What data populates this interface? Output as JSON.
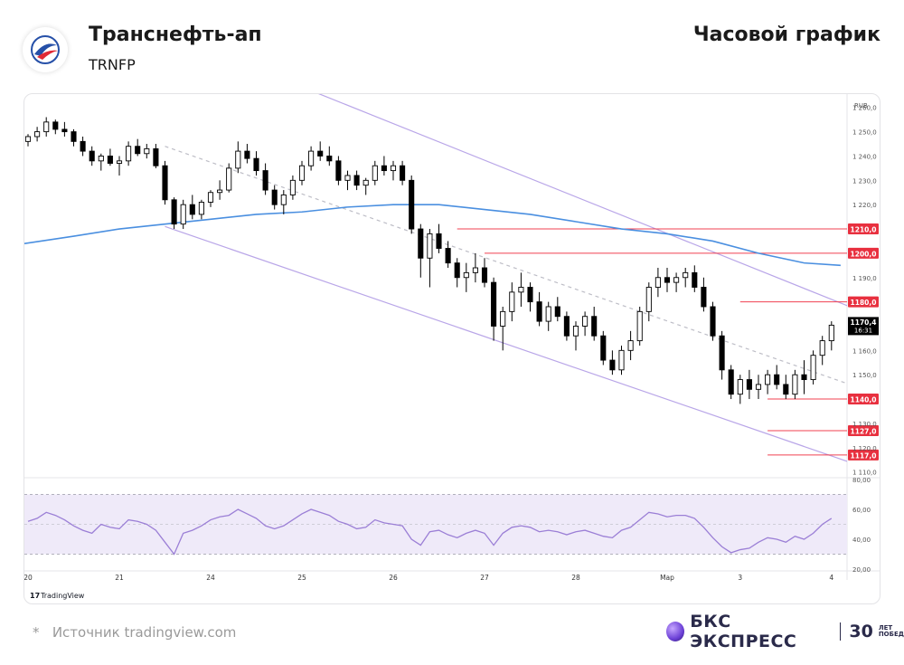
{
  "header": {
    "title": "Транснефть-ап",
    "ticker": "TRNFP",
    "chart_type_label": "Часовой график"
  },
  "footer": {
    "source": "Источник tradingview.com",
    "source_marker": "*",
    "brand_name": "БКС ЭКСПРЕСС",
    "brand_years": "30",
    "brand_years_caption_1": "ЛЕТ",
    "brand_years_caption_2": "ПОБЕД",
    "tradingview_label": "TradingView"
  },
  "colors": {
    "up_candle": "#ffffff",
    "down_candle": "#000000",
    "ma_line": "#4a8fe0",
    "channel": "#b9a6e8",
    "level_line": "#f04050",
    "level_badge": "#e8303f",
    "rsi_line": "#9b7fd6",
    "rsi_band": "#efeaf9"
  },
  "chart_data": {
    "type": "candlestick",
    "currency": "RUB",
    "y_axis_ticks": [
      "1 260,0",
      "1 250,0",
      "1 240,0",
      "1 230,0",
      "1 220,0",
      "1 190,0",
      "1 160,0",
      "1 150,0",
      "1 130,0",
      "1 120,0",
      "1 110,0"
    ],
    "ylim": [
      1108,
      1264
    ],
    "x_tick_labels": [
      "20",
      "21",
      "24",
      "25",
      "26",
      "27",
      "28",
      "Мар",
      "3",
      "4"
    ],
    "x_tick_index": [
      0,
      10,
      20,
      30,
      40,
      50,
      60,
      70,
      78,
      88
    ],
    "last_price_label": "1170,4",
    "last_time_label": "16:31",
    "last_price": 1170.4,
    "levels": [
      {
        "label": "1210,0",
        "value": 1210.0,
        "from_index": 47
      },
      {
        "label": "1200,0",
        "value": 1200.0,
        "from_index": 50
      },
      {
        "label": "1180,0",
        "value": 1180.0,
        "from_index": 78
      },
      {
        "label": "1140,0",
        "value": 1140.0,
        "from_index": 81
      },
      {
        "label": "1127,0",
        "value": 1127.0,
        "from_index": 81
      },
      {
        "label": "1117,0",
        "value": 1117.0,
        "from_index": 81
      }
    ],
    "channel": {
      "upper": [
        [
          19,
          1285
        ],
        [
          90,
          1178
        ]
      ],
      "lower": [
        [
          15,
          1211
        ],
        [
          90,
          1114
        ]
      ],
      "middle": [
        [
          15,
          1244
        ],
        [
          90,
          1146
        ]
      ]
    },
    "moving_average": [
      [
        0,
        1204
      ],
      [
        5,
        1207
      ],
      [
        10,
        1210
      ],
      [
        15,
        1212
      ],
      [
        20,
        1214
      ],
      [
        25,
        1216
      ],
      [
        30,
        1217
      ],
      [
        35,
        1219
      ],
      [
        40,
        1220
      ],
      [
        45,
        1220
      ],
      [
        50,
        1218
      ],
      [
        55,
        1216
      ],
      [
        60,
        1213
      ],
      [
        65,
        1210
      ],
      [
        70,
        1208
      ],
      [
        75,
        1205
      ],
      [
        80,
        1200
      ],
      [
        85,
        1196
      ],
      [
        89,
        1195
      ]
    ],
    "candles": [
      [
        1246,
        1249,
        1244,
        1248
      ],
      [
        1248,
        1252,
        1246,
        1250
      ],
      [
        1250,
        1256,
        1248,
        1254
      ],
      [
        1254,
        1255,
        1249,
        1251
      ],
      [
        1251,
        1254,
        1248,
        1250
      ],
      [
        1250,
        1251,
        1244,
        1246
      ],
      [
        1246,
        1248,
        1240,
        1242
      ],
      [
        1242,
        1244,
        1236,
        1238
      ],
      [
        1238,
        1241,
        1234,
        1240
      ],
      [
        1240,
        1243,
        1236,
        1237
      ],
      [
        1237,
        1240,
        1232,
        1238
      ],
      [
        1238,
        1246,
        1236,
        1244
      ],
      [
        1244,
        1247,
        1240,
        1241
      ],
      [
        1241,
        1245,
        1239,
        1243
      ],
      [
        1243,
        1245,
        1235,
        1236
      ],
      [
        1236,
        1238,
        1220,
        1222
      ],
      [
        1222,
        1223,
        1210,
        1212
      ],
      [
        1212,
        1222,
        1210,
        1220
      ],
      [
        1220,
        1224,
        1214,
        1216
      ],
      [
        1216,
        1222,
        1214,
        1221
      ],
      [
        1221,
        1226,
        1219,
        1225
      ],
      [
        1225,
        1230,
        1222,
        1226
      ],
      [
        1226,
        1237,
        1225,
        1235
      ],
      [
        1235,
        1246,
        1233,
        1242
      ],
      [
        1242,
        1245,
        1237,
        1239
      ],
      [
        1239,
        1242,
        1232,
        1234
      ],
      [
        1234,
        1237,
        1224,
        1226
      ],
      [
        1226,
        1228,
        1218,
        1220
      ],
      [
        1220,
        1226,
        1216,
        1224
      ],
      [
        1224,
        1232,
        1222,
        1230
      ],
      [
        1230,
        1238,
        1228,
        1236
      ],
      [
        1236,
        1244,
        1234,
        1242
      ],
      [
        1242,
        1246,
        1238,
        1240
      ],
      [
        1240,
        1244,
        1236,
        1238
      ],
      [
        1238,
        1240,
        1228,
        1230
      ],
      [
        1230,
        1234,
        1226,
        1232
      ],
      [
        1232,
        1234,
        1226,
        1228
      ],
      [
        1228,
        1231,
        1224,
        1230
      ],
      [
        1230,
        1238,
        1228,
        1236
      ],
      [
        1236,
        1240,
        1232,
        1234
      ],
      [
        1234,
        1238,
        1230,
        1236
      ],
      [
        1236,
        1238,
        1228,
        1230
      ],
      [
        1230,
        1232,
        1208,
        1210
      ],
      [
        1210,
        1212,
        1190,
        1198
      ],
      [
        1198,
        1210,
        1186,
        1208
      ],
      [
        1208,
        1212,
        1200,
        1202
      ],
      [
        1202,
        1205,
        1194,
        1196
      ],
      [
        1196,
        1198,
        1186,
        1190
      ],
      [
        1190,
        1196,
        1184,
        1192
      ],
      [
        1192,
        1200,
        1188,
        1194
      ],
      [
        1194,
        1198,
        1186,
        1188
      ],
      [
        1188,
        1190,
        1164,
        1170
      ],
      [
        1170,
        1178,
        1160,
        1176
      ],
      [
        1176,
        1188,
        1172,
        1184
      ],
      [
        1184,
        1192,
        1178,
        1186
      ],
      [
        1186,
        1188,
        1176,
        1180
      ],
      [
        1180,
        1184,
        1170,
        1172
      ],
      [
        1172,
        1180,
        1168,
        1178
      ],
      [
        1178,
        1182,
        1172,
        1174
      ],
      [
        1174,
        1176,
        1164,
        1166
      ],
      [
        1166,
        1172,
        1160,
        1170
      ],
      [
        1170,
        1176,
        1166,
        1174
      ],
      [
        1174,
        1178,
        1164,
        1166
      ],
      [
        1166,
        1168,
        1154,
        1156
      ],
      [
        1156,
        1160,
        1150,
        1152
      ],
      [
        1152,
        1162,
        1150,
        1160
      ],
      [
        1160,
        1168,
        1156,
        1164
      ],
      [
        1164,
        1178,
        1162,
        1176
      ],
      [
        1176,
        1188,
        1172,
        1186
      ],
      [
        1186,
        1194,
        1182,
        1190
      ],
      [
        1190,
        1194,
        1184,
        1188
      ],
      [
        1188,
        1192,
        1184,
        1190
      ],
      [
        1190,
        1194,
        1186,
        1192
      ],
      [
        1192,
        1195,
        1184,
        1186
      ],
      [
        1186,
        1190,
        1176,
        1178
      ],
      [
        1178,
        1180,
        1164,
        1166
      ],
      [
        1166,
        1168,
        1148,
        1152
      ],
      [
        1152,
        1154,
        1140,
        1142
      ],
      [
        1142,
        1150,
        1138,
        1148
      ],
      [
        1148,
        1152,
        1140,
        1144
      ],
      [
        1144,
        1150,
        1140,
        1146
      ],
      [
        1146,
        1152,
        1142,
        1150
      ],
      [
        1150,
        1154,
        1144,
        1146
      ],
      [
        1146,
        1150,
        1140,
        1142
      ],
      [
        1142,
        1152,
        1140,
        1150
      ],
      [
        1150,
        1156,
        1142,
        1148
      ],
      [
        1148,
        1160,
        1146,
        1158
      ],
      [
        1158,
        1166,
        1154,
        1164
      ],
      [
        1164,
        1172,
        1160,
        1170.4
      ]
    ],
    "rsi": {
      "ylim": [
        20,
        80
      ],
      "ticks": [
        "80,00",
        "60,00",
        "40,00",
        "20,00"
      ],
      "band": [
        30,
        70
      ],
      "midline": 50,
      "values": [
        52,
        54,
        58,
        56,
        53,
        49,
        46,
        44,
        50,
        48,
        47,
        53,
        52,
        50,
        46,
        38,
        30,
        44,
        46,
        49,
        53,
        55,
        56,
        60,
        57,
        54,
        49,
        47,
        49,
        53,
        57,
        60,
        58,
        56,
        52,
        50,
        47,
        48,
        53,
        51,
        50,
        49,
        40,
        36,
        45,
        46,
        43,
        41,
        44,
        46,
        44,
        36,
        44,
        48,
        49,
        48,
        45,
        46,
        45,
        43,
        45,
        46,
        44,
        42,
        41,
        46,
        48,
        53,
        58,
        57,
        55,
        56,
        56,
        54,
        48,
        41,
        35,
        31,
        33,
        34,
        38,
        41,
        40,
        38,
        42,
        40,
        44,
        50,
        54
      ]
    }
  }
}
